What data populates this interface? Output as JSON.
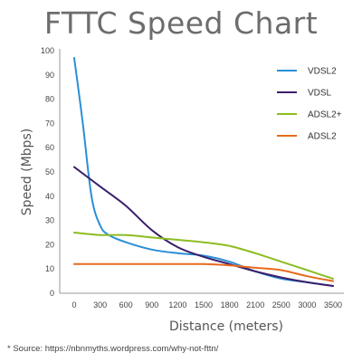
{
  "chart_data": {
    "type": "line",
    "title": "FTTC Speed Chart",
    "xlabel": "Distance (meters)",
    "ylabel": "Speed (Mbps)",
    "x_ticks": [
      0,
      300,
      600,
      900,
      1200,
      1500,
      1800,
      2100,
      2500,
      3000,
      3500
    ],
    "x_tick_labels": [
      "0",
      "300",
      "600",
      "900",
      "1200",
      "1500",
      "1800",
      "2100",
      "2500",
      "3000",
      "3500"
    ],
    "y_ticks": [
      0,
      10,
      20,
      30,
      40,
      50,
      60,
      70,
      80,
      90,
      100
    ],
    "y_tick_labels": [
      "0",
      "10",
      "20",
      "30",
      "40",
      "50",
      "60",
      "70",
      "80",
      "90",
      "100"
    ],
    "ylim": [
      0,
      100
    ],
    "grid": false,
    "legend_position": "top-right",
    "series": [
      {
        "name": "VDSL2",
        "color": "#2b8fd6",
        "points": [
          [
            0,
            97
          ],
          [
            100,
            70
          ],
          [
            200,
            40
          ],
          [
            300,
            28
          ],
          [
            400,
            24
          ],
          [
            600,
            21
          ],
          [
            900,
            18
          ],
          [
            1200,
            16.5
          ],
          [
            1500,
            15.5
          ],
          [
            1800,
            13
          ],
          [
            2100,
            9
          ],
          [
            2500,
            6
          ],
          [
            3000,
            4.5
          ],
          [
            3500,
            3
          ]
        ]
      },
      {
        "name": "VDSL",
        "color": "#3a1f6b",
        "points": [
          [
            0,
            52
          ],
          [
            300,
            44
          ],
          [
            600,
            36
          ],
          [
            900,
            26
          ],
          [
            1200,
            19
          ],
          [
            1500,
            15
          ],
          [
            1800,
            12
          ],
          [
            2100,
            9
          ],
          [
            2500,
            6.5
          ],
          [
            3000,
            4.5
          ],
          [
            3500,
            3
          ]
        ]
      },
      {
        "name": "ADSL2+",
        "color": "#8cbd22",
        "points": [
          [
            0,
            25
          ],
          [
            300,
            24
          ],
          [
            600,
            24
          ],
          [
            900,
            23
          ],
          [
            1200,
            22
          ],
          [
            1500,
            21
          ],
          [
            1800,
            19.5
          ],
          [
            2100,
            16.5
          ],
          [
            2500,
            13
          ],
          [
            3000,
            9.5
          ],
          [
            3500,
            6
          ]
        ]
      },
      {
        "name": "ADSL2",
        "color": "#e86a1e",
        "points": [
          [
            0,
            12
          ],
          [
            300,
            12
          ],
          [
            600,
            12
          ],
          [
            900,
            12
          ],
          [
            1200,
            12
          ],
          [
            1500,
            12
          ],
          [
            1800,
            11.5
          ],
          [
            2100,
            10.5
          ],
          [
            2500,
            9.5
          ],
          [
            3000,
            7
          ],
          [
            3500,
            5
          ]
        ]
      }
    ]
  },
  "source_note": "* Source: https://nbnmyths.wordpress.com/why-not-fttn/"
}
